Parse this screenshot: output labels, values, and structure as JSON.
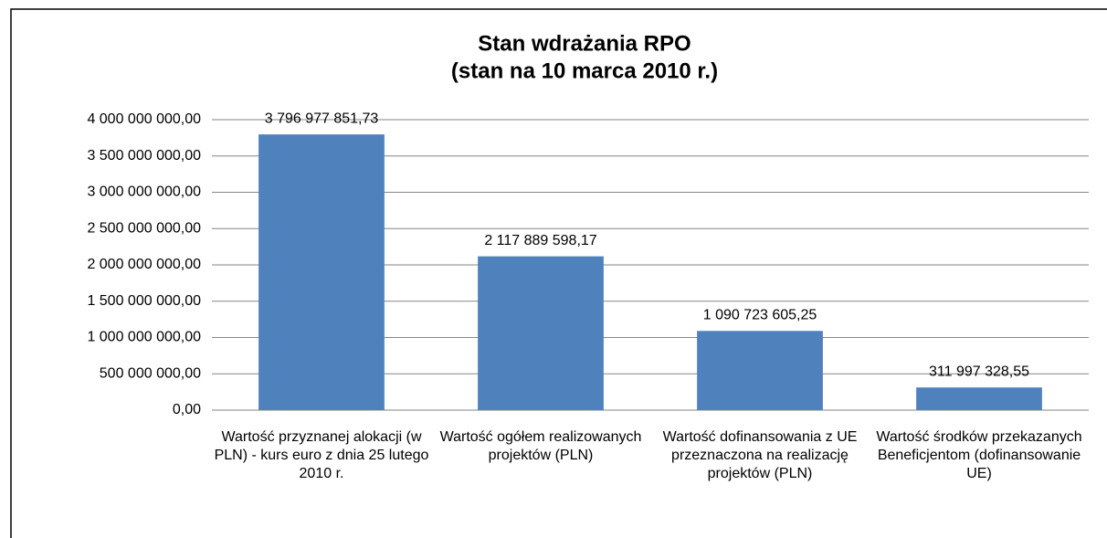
{
  "chart_data": {
    "type": "bar",
    "title": [
      "Stan wdrażania RPO",
      "(stan na 10 marca 2010 r.)"
    ],
    "categories": [
      "Wartość przyznanej alokacji (w PLN) - kurs euro z dnia 25 lutego 2010 r.",
      "Wartość ogółem realizowanych projektów (PLN)",
      "Wartość dofinansowania z UE przeznaczona na realizację projektów (PLN)",
      "Wartość środków przekazanych Beneficjentom (dofinansowanie UE)"
    ],
    "values": [
      3796977851.73,
      2117889598.17,
      1090723605.25,
      311997328.55
    ],
    "value_labels": [
      "3 796 977 851,73",
      "2 117 889 598,17",
      "1 090 723 605,25",
      "311 997 328,55"
    ],
    "color": "#4f81bd",
    "ylim": [
      0,
      4000000000
    ],
    "yticks": [
      {
        "value": 0,
        "label": "0,00"
      },
      {
        "value": 500000000,
        "label": "500 000 000,00"
      },
      {
        "value": 1000000000,
        "label": "1 000 000 000,00"
      },
      {
        "value": 1500000000,
        "label": "1 500 000 000,00"
      },
      {
        "value": 2000000000,
        "label": "2 000 000 000,00"
      },
      {
        "value": 2500000000,
        "label": "2 500 000 000,00"
      },
      {
        "value": 3000000000,
        "label": "3 000 000 000,00"
      },
      {
        "value": 3500000000,
        "label": "3 500 000 000,00"
      },
      {
        "value": 4000000000,
        "label": "4 000 000 000,00"
      }
    ],
    "grid": true
  }
}
